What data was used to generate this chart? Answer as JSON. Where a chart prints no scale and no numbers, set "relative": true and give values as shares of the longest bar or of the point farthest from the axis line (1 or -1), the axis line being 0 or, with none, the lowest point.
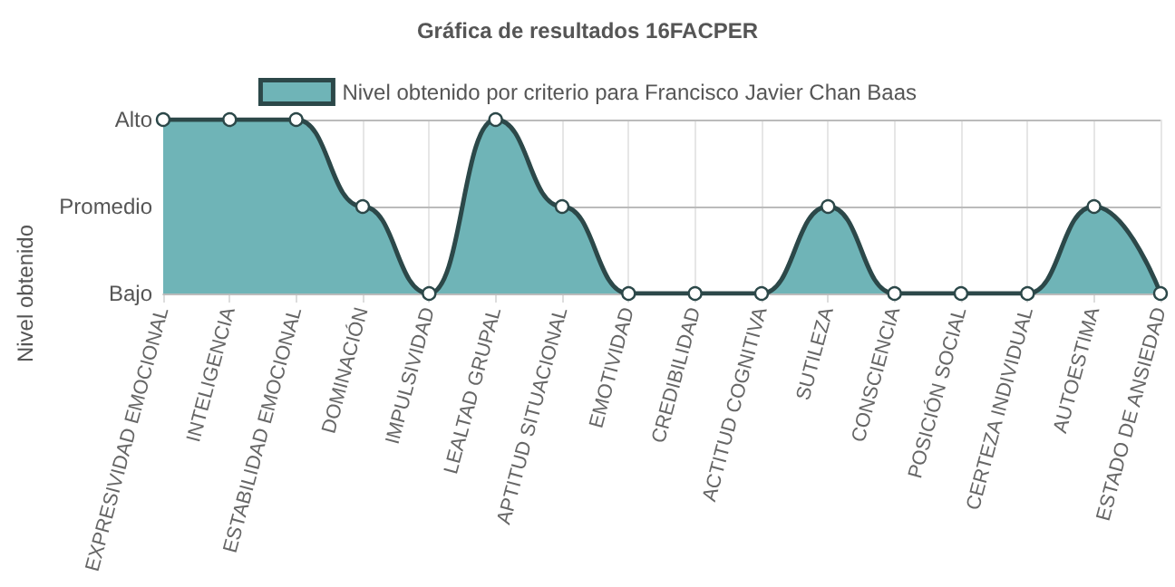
{
  "chart_data": {
    "type": "area",
    "title": "Gráfica de resultados 16FACPER",
    "ylabel": "Nivel obtenido",
    "categories": [
      "EXPRESIVIDAD EMOCIONAL",
      "INTELIGENCIA",
      "ESTABILIDAD EMOCIONAL",
      "DOMINACIÓN",
      "IMPULSIVIDAD",
      "LEALTAD GRUPAL",
      "APTITUD SITUACIONAL",
      "EMOTIVIDAD",
      "CREDIBILIDAD",
      "ACTITUD COGNITIVA",
      "SUTILEZA",
      "CONSCIENCIA",
      "POSICIÓN SOCIAL",
      "CERTEZA INDIVIDUAL",
      "AUTOESTIMA",
      "ESTADO DE ANSIEDAD"
    ],
    "series": [
      {
        "name": "Nivel obtenido por criterio para Francisco Javier Chan Baas",
        "color": "#6fb4b7",
        "values": [
          1,
          1,
          1,
          0.5,
          0,
          1,
          0.5,
          0,
          0,
          0,
          0.5,
          0,
          0,
          0,
          0.5,
          0
        ]
      }
    ],
    "relative": true,
    "ref_lines": [
      {
        "axis": "y",
        "value": 1,
        "label": "Alto",
        "color": "#bbbbbb",
        "line_style": "solid"
      },
      {
        "axis": "y",
        "value": 0.5,
        "label": "Promedio",
        "color": "#bbbbbb",
        "line_style": "solid"
      },
      {
        "axis": "y",
        "value": 0,
        "label": "Bajo",
        "color": "#bbbbbb",
        "line_style": "solid"
      }
    ],
    "grid": "x",
    "legend": "top",
    "marker": "circle",
    "line_style": "solid"
  }
}
